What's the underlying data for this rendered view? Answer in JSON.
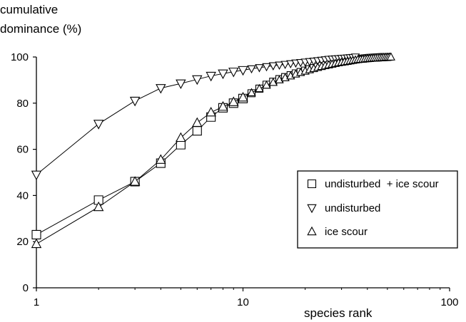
{
  "chart_data": {
    "type": "line",
    "title": "",
    "ylabel_lines": [
      "cumulative",
      "dominance (%)"
    ],
    "xlabel": "species rank",
    "x_scale": "log",
    "xlim": [
      1,
      100
    ],
    "ylim": [
      0,
      100
    ],
    "x_ticks": [
      1,
      10,
      100
    ],
    "x_tick_labels": [
      "1",
      "10",
      "100"
    ],
    "y_ticks": [
      0,
      20,
      40,
      60,
      80,
      100
    ],
    "y_tick_labels": [
      "0",
      "20",
      "40",
      "60",
      "80",
      "100"
    ],
    "grid": false,
    "legend_position": "right",
    "series": [
      {
        "name": "undisturbed  + ice scour",
        "marker": "square",
        "x": [
          1,
          2,
          3,
          4,
          5,
          6,
          7,
          8,
          9,
          10,
          11,
          12,
          13,
          14,
          15,
          16,
          17,
          18,
          19,
          20,
          21,
          22,
          23,
          24,
          25,
          26,
          27,
          28,
          29,
          30,
          31,
          32,
          33,
          34,
          35,
          36,
          37,
          38,
          39,
          40,
          41,
          42,
          43,
          44,
          45,
          46,
          47,
          48,
          49,
          50
        ],
        "values": [
          23,
          38,
          46,
          54,
          62,
          68,
          74,
          78,
          80,
          82,
          84.3,
          86.3,
          88,
          89.3,
          90.4,
          91.3,
          92.1,
          92.9,
          93.5,
          94.1,
          94.7,
          95.2,
          95.7,
          96.1,
          96.5,
          96.9,
          97.2,
          97.5,
          97.8,
          98,
          98.2,
          98.4,
          98.6,
          98.8,
          99,
          99.1,
          99.2,
          99.3,
          99.4,
          99.5,
          99.6,
          99.65,
          99.7,
          99.75,
          99.8,
          99.85,
          99.9,
          99.93,
          99.96,
          100
        ]
      },
      {
        "name": "undisturbed",
        "marker": "triangle-down",
        "x": [
          1,
          2,
          3,
          4,
          5,
          6,
          7,
          8,
          9,
          10,
          11,
          12,
          13,
          14,
          15,
          16,
          17,
          18,
          19,
          20,
          21,
          22,
          23,
          24,
          25,
          26,
          27,
          28,
          29,
          30,
          31,
          32,
          33,
          34,
          35
        ],
        "values": [
          49,
          71,
          81,
          86.5,
          88.5,
          90.3,
          91.8,
          92.8,
          93.6,
          94.3,
          94.9,
          95.4,
          95.8,
          96.2,
          96.5,
          96.8,
          97.1,
          97.4,
          97.6,
          97.8,
          98,
          98.2,
          98.4,
          98.6,
          98.8,
          99,
          99.1,
          99.2,
          99.3,
          99.4,
          99.5,
          99.6,
          99.7,
          99.8,
          100
        ]
      },
      {
        "name": "ice scour",
        "marker": "triangle-up",
        "x": [
          1,
          2,
          3,
          4,
          5,
          6,
          7,
          8,
          9,
          10,
          11,
          12,
          13,
          14,
          15,
          16,
          17,
          18,
          19,
          20,
          21,
          22,
          23,
          24,
          25,
          26,
          27,
          28,
          29,
          30,
          31,
          32,
          33,
          34,
          35,
          36,
          37,
          38,
          39,
          40,
          41,
          42,
          43,
          44,
          45,
          46,
          47,
          48,
          49,
          50,
          51,
          52
        ],
        "values": [
          19,
          35,
          46,
          55.5,
          65,
          71.5,
          76,
          78.5,
          80.5,
          82.5,
          84.5,
          86.3,
          87.8,
          89,
          90.1,
          91,
          91.8,
          92.6,
          93.3,
          93.9,
          94.5,
          95,
          95.5,
          95.9,
          96.3,
          96.6,
          96.9,
          97.2,
          97.5,
          97.7,
          97.9,
          98.1,
          98.3,
          98.5,
          98.7,
          98.9,
          99,
          99.1,
          99.2,
          99.3,
          99.4,
          99.5,
          99.55,
          99.6,
          99.65,
          99.7,
          99.75,
          99.8,
          99.85,
          99.9,
          99.95,
          100
        ]
      }
    ]
  }
}
